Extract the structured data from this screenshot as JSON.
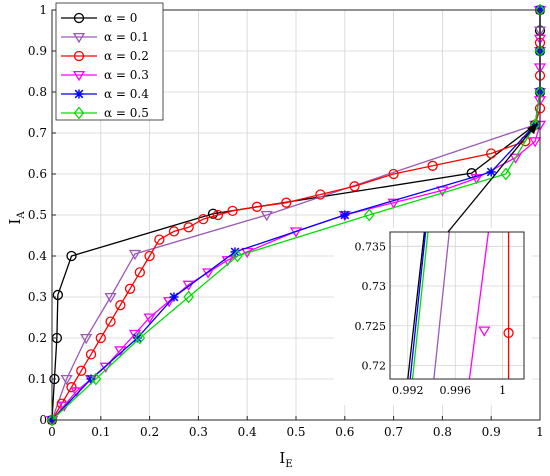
{
  "chart_data": {
    "type": "line",
    "title": "",
    "xlabel": "I",
    "xlabel_sub": "E",
    "ylabel": "I",
    "ylabel_sub": "A",
    "xlim": [
      0,
      1
    ],
    "ylim": [
      0,
      1
    ],
    "xticks": [
      "0",
      "0.1",
      "0.2",
      "0.3",
      "0.4",
      "0.5",
      "0.6",
      "0.7",
      "0.8",
      "0.9",
      "1"
    ],
    "yticks": [
      "0",
      "0.1",
      "0.2",
      "0.3",
      "0.4",
      "0.5",
      "0.6",
      "0.7",
      "0.8",
      "0.9",
      "1"
    ],
    "grid": true,
    "legend_position": "top-left",
    "series": [
      {
        "name": "α = 0",
        "color": "#000000",
        "marker": "circle",
        "x": [
          0,
          0.005,
          0.01,
          0.012,
          0.04,
          0.33,
          0.86,
          0.99,
          1.0,
          1.0,
          1.0,
          1.0
        ],
        "y": [
          0,
          0.1,
          0.2,
          0.305,
          0.4,
          0.503,
          0.602,
          0.72,
          0.8,
          0.9,
          0.95,
          1.0
        ]
      },
      {
        "name": "α = 0.1",
        "color": "#9b59b6",
        "marker": "triangle-down",
        "x": [
          0,
          0.03,
          0.07,
          0.12,
          0.17,
          0.44,
          0.99,
          1.0,
          1.0,
          1.0,
          1.0
        ],
        "y": [
          0,
          0.1,
          0.2,
          0.3,
          0.405,
          0.5,
          0.72,
          0.8,
          0.9,
          0.95,
          1.0
        ]
      },
      {
        "name": "α = 0.2",
        "color": "#ff0000",
        "marker": "circle",
        "x": [
          0,
          0.02,
          0.04,
          0.06,
          0.08,
          0.1,
          0.12,
          0.14,
          0.16,
          0.18,
          0.2,
          0.22,
          0.25,
          0.28,
          0.31,
          0.34,
          0.37,
          0.42,
          0.48,
          0.55,
          0.62,
          0.7,
          0.78,
          0.9,
          0.97,
          0.99,
          1.0,
          1.0,
          1.0,
          1.0
        ],
        "y": [
          0,
          0.04,
          0.08,
          0.12,
          0.16,
          0.2,
          0.24,
          0.28,
          0.32,
          0.36,
          0.4,
          0.44,
          0.46,
          0.47,
          0.49,
          0.5,
          0.51,
          0.52,
          0.53,
          0.55,
          0.57,
          0.6,
          0.62,
          0.65,
          0.68,
          0.72,
          0.76,
          0.84,
          0.92,
          1.0
        ]
      },
      {
        "name": "α = 0.3",
        "color": "#ff00ff",
        "marker": "triangle-down",
        "x": [
          0,
          0.025,
          0.05,
          0.08,
          0.11,
          0.14,
          0.17,
          0.2,
          0.24,
          0.28,
          0.32,
          0.36,
          0.4,
          0.5,
          0.6,
          0.7,
          0.8,
          0.87,
          0.95,
          0.99,
          1.0,
          1.0,
          1.0,
          1.0,
          1.0
        ],
        "y": [
          0,
          0.035,
          0.07,
          0.1,
          0.13,
          0.17,
          0.21,
          0.25,
          0.29,
          0.33,
          0.36,
          0.39,
          0.41,
          0.46,
          0.5,
          0.53,
          0.56,
          0.59,
          0.64,
          0.68,
          0.72,
          0.78,
          0.86,
          0.93,
          1.0
        ]
      },
      {
        "name": "α = 0.4",
        "color": "#0000ff",
        "marker": "asterisk",
        "x": [
          0,
          0.08,
          0.175,
          0.25,
          0.375,
          0.6,
          0.9,
          0.99,
          1.0,
          1.0,
          1.0
        ],
        "y": [
          0,
          0.1,
          0.2,
          0.3,
          0.41,
          0.5,
          0.605,
          0.72,
          0.8,
          0.9,
          1.0
        ]
      },
      {
        "name": "α = 0.5",
        "color": "#00e000",
        "marker": "diamond",
        "x": [
          0,
          0.09,
          0.18,
          0.28,
          0.38,
          0.65,
          0.93,
          0.99,
          1.0,
          1.0,
          1.0
        ],
        "y": [
          0,
          0.1,
          0.2,
          0.3,
          0.4,
          0.5,
          0.6,
          0.72,
          0.8,
          0.9,
          1.0
        ]
      }
    ],
    "inset": {
      "xlim": [
        0.9905,
        1.0018
      ],
      "ylim": [
        0.7183,
        0.7368
      ],
      "xticks": [
        {
          "value": 0.992,
          "label": "0.992"
        },
        {
          "value": 0.996,
          "label": "0.996"
        },
        {
          "value": 1.0,
          "label": "1"
        }
      ],
      "yticks": [
        {
          "value": 0.72,
          "label": "0.72"
        },
        {
          "value": 0.725,
          "label": "0.725"
        },
        {
          "value": 0.73,
          "label": "0.73"
        },
        {
          "value": 0.735,
          "label": "0.735"
        }
      ],
      "lines": [
        {
          "name": "α = 0",
          "color": "#000000",
          "x": [
            0.992,
            0.9934
          ],
          "y": [
            0.7183,
            0.7368
          ]
        },
        {
          "name": "α = 0.4",
          "color": "#0000ff",
          "x": [
            0.9922,
            0.9935
          ],
          "y": [
            0.7183,
            0.7368
          ]
        },
        {
          "name": "α = 0.5",
          "color": "#00e000",
          "x": [
            0.9924,
            0.9937
          ],
          "y": [
            0.7183,
            0.7368
          ]
        },
        {
          "name": "α = 0.1",
          "color": "#9b59b6",
          "x": [
            0.9942,
            0.9955
          ],
          "y": [
            0.7183,
            0.7368
          ]
        },
        {
          "name": "α = 0.3",
          "color": "#ff00ff",
          "x": [
            0.9972,
            0.9988
          ],
          "y": [
            0.7183,
            0.7368
          ]
        },
        {
          "name": "α = 0.2",
          "color": "#ff0000",
          "x": [
            1.0005,
            1.0005
          ],
          "y": [
            0.7183,
            0.7368
          ]
        }
      ],
      "markers": [
        {
          "name": "α = 0.3",
          "color": "#ff00ff",
          "marker": "triangle-down",
          "x": 0.99845,
          "y": 0.7244
        },
        {
          "name": "α = 0.2",
          "color": "#ff0000",
          "marker": "circle",
          "x": 1.0005,
          "y": 0.7241
        }
      ],
      "source_point": {
        "x": 0.995,
        "y": 0.725
      }
    }
  }
}
